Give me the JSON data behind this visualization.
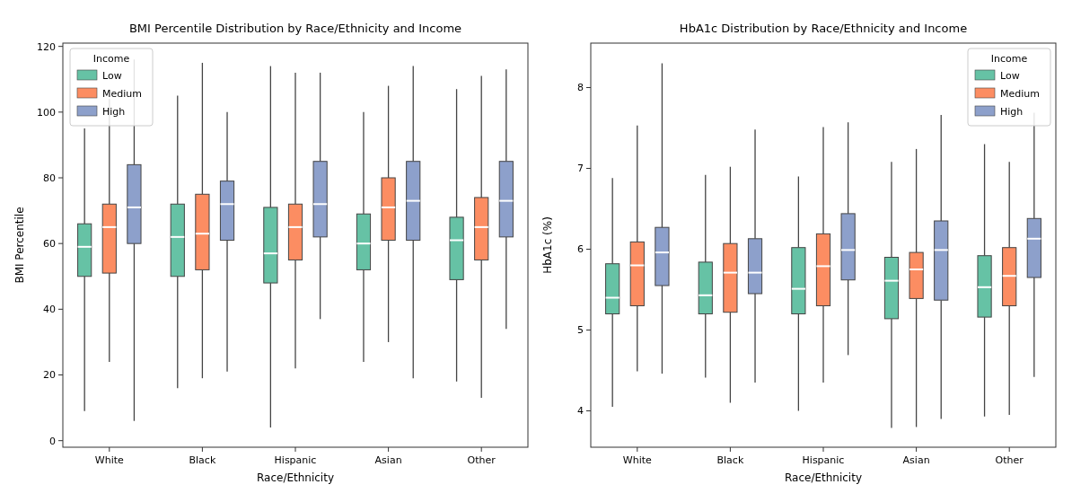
{
  "chart_data": [
    {
      "type": "box",
      "title": "BMI Percentile Distribution by Race/Ethnicity and Income",
      "xlabel": "Race/Ethnicity",
      "ylabel": "BMI Percentile",
      "legend_title": "Income",
      "legend": "top left",
      "grid": false,
      "categories": [
        "White",
        "Black",
        "Hispanic",
        "Asian",
        "Other"
      ],
      "ylim": [
        -2,
        121
      ],
      "yticks": [
        0,
        20,
        40,
        60,
        80,
        100,
        120
      ],
      "series": [
        {
          "name": "Low",
          "color": "#66c2a5",
          "boxes": [
            {
              "low": 9,
              "q1": 50,
              "median": 59,
              "q3": 66,
              "high": 95
            },
            {
              "low": 16,
              "q1": 50,
              "median": 62,
              "q3": 72,
              "high": 105
            },
            {
              "low": 4,
              "q1": 48,
              "median": 57,
              "q3": 71,
              "high": 114
            },
            {
              "low": 24,
              "q1": 52,
              "median": 60,
              "q3": 69,
              "high": 100
            },
            {
              "low": 18,
              "q1": 49,
              "median": 61,
              "q3": 68,
              "high": 107
            }
          ]
        },
        {
          "name": "Medium",
          "color": "#fc8d62",
          "boxes": [
            {
              "low": 24,
              "q1": 51,
              "median": 65,
              "q3": 72,
              "high": 104
            },
            {
              "low": 19,
              "q1": 52,
              "median": 63,
              "q3": 75,
              "high": 115
            },
            {
              "low": 22,
              "q1": 55,
              "median": 65,
              "q3": 72,
              "high": 112
            },
            {
              "low": 30,
              "q1": 61,
              "median": 71,
              "q3": 80,
              "high": 108
            },
            {
              "low": 13,
              "q1": 55,
              "median": 65,
              "q3": 74,
              "high": 111
            }
          ]
        },
        {
          "name": "High",
          "color": "#8da0cb",
          "boxes": [
            {
              "low": 6,
              "q1": 60,
              "median": 71,
              "q3": 84,
              "high": 116
            },
            {
              "low": 21,
              "q1": 61,
              "median": 72,
              "q3": 79,
              "high": 100
            },
            {
              "low": 37,
              "q1": 62,
              "median": 72,
              "q3": 85,
              "high": 112
            },
            {
              "low": 19,
              "q1": 61,
              "median": 73,
              "q3": 85,
              "high": 114
            },
            {
              "low": 34,
              "q1": 62,
              "median": 73,
              "q3": 85,
              "high": 113
            }
          ]
        }
      ]
    },
    {
      "type": "box",
      "title": "HbA1c Distribution by Race/Ethnicity and Income",
      "xlabel": "Race/Ethnicity",
      "ylabel": "HbA1c (%)",
      "legend_title": "Income",
      "legend": "top right",
      "grid": false,
      "categories": [
        "White",
        "Black",
        "Hispanic",
        "Asian",
        "Other"
      ],
      "ylim": [
        3.55,
        8.55
      ],
      "yticks": [
        4,
        5,
        6,
        7,
        8
      ],
      "series": [
        {
          "name": "Low",
          "color": "#66c2a5",
          "boxes": [
            {
              "low": 4.05,
              "q1": 5.2,
              "median": 5.4,
              "q3": 5.82,
              "high": 6.88
            },
            {
              "low": 4.41,
              "q1": 5.2,
              "median": 5.43,
              "q3": 5.84,
              "high": 6.92
            },
            {
              "low": 4.0,
              "q1": 5.2,
              "median": 5.51,
              "q3": 6.02,
              "high": 6.9
            },
            {
              "low": 3.79,
              "q1": 5.14,
              "median": 5.61,
              "q3": 5.9,
              "high": 7.08
            },
            {
              "low": 3.93,
              "q1": 5.16,
              "median": 5.53,
              "q3": 5.92,
              "high": 7.3
            }
          ]
        },
        {
          "name": "Medium",
          "color": "#fc8d62",
          "boxes": [
            {
              "low": 4.49,
              "q1": 5.3,
              "median": 5.8,
              "q3": 6.09,
              "high": 7.53
            },
            {
              "low": 4.1,
              "q1": 5.22,
              "median": 5.71,
              "q3": 6.07,
              "high": 7.02
            },
            {
              "low": 4.35,
              "q1": 5.3,
              "median": 5.79,
              "q3": 6.19,
              "high": 7.51
            },
            {
              "low": 3.8,
              "q1": 5.39,
              "median": 5.75,
              "q3": 5.96,
              "high": 7.24
            },
            {
              "low": 3.95,
              "q1": 5.3,
              "median": 5.67,
              "q3": 6.02,
              "high": 7.08
            }
          ]
        },
        {
          "name": "High",
          "color": "#8da0cb",
          "boxes": [
            {
              "low": 4.46,
              "q1": 5.55,
              "median": 5.96,
              "q3": 6.27,
              "high": 8.3
            },
            {
              "low": 4.35,
              "q1": 5.45,
              "median": 5.71,
              "q3": 6.13,
              "high": 7.48
            },
            {
              "low": 4.69,
              "q1": 5.62,
              "median": 5.99,
              "q3": 6.44,
              "high": 7.57
            },
            {
              "low": 3.9,
              "q1": 5.37,
              "median": 5.99,
              "q3": 6.35,
              "high": 7.66
            },
            {
              "low": 4.42,
              "q1": 5.65,
              "median": 6.13,
              "q3": 6.38,
              "high": 7.69
            }
          ]
        }
      ]
    }
  ]
}
